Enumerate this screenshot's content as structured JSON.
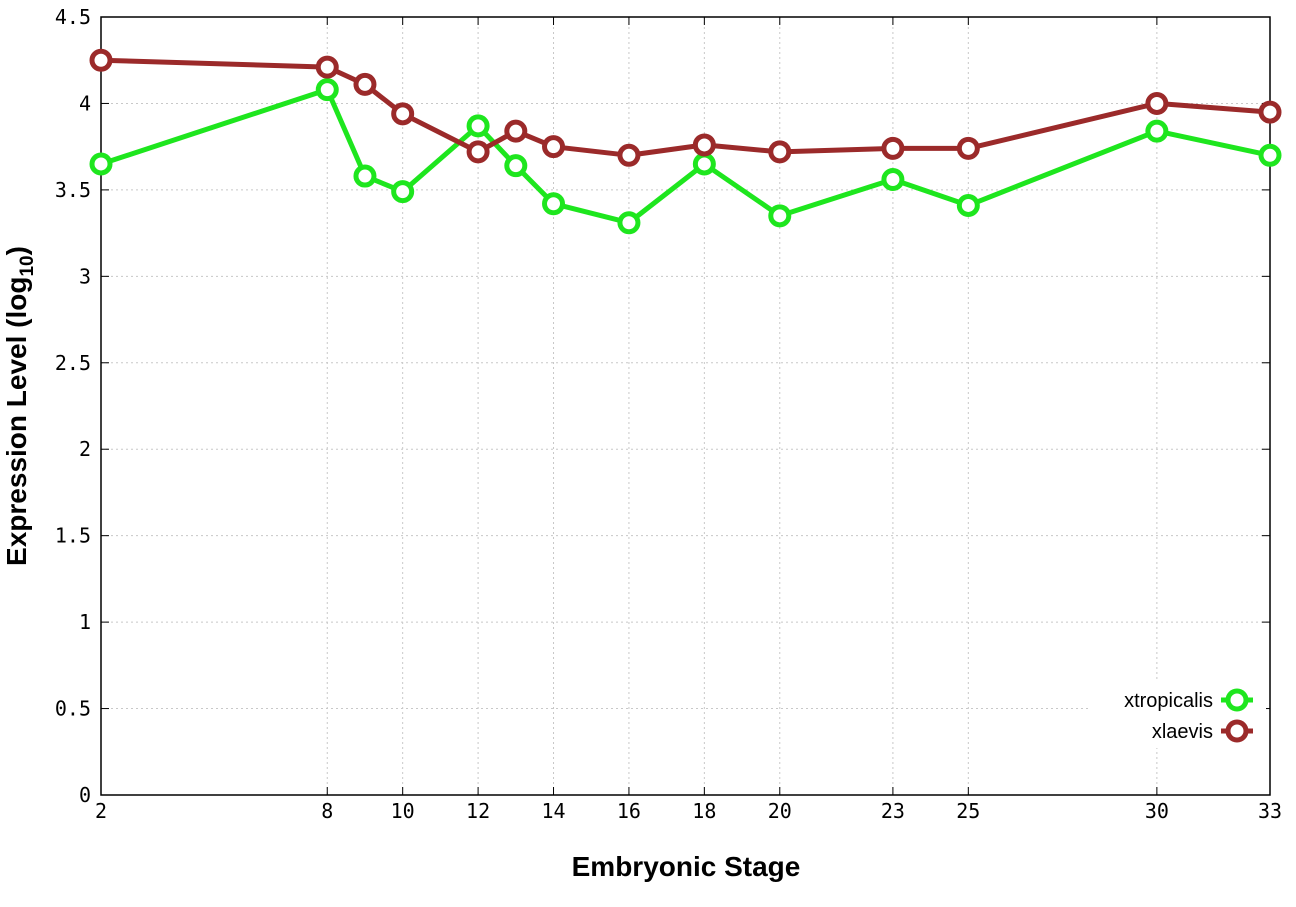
{
  "chart_data": {
    "type": "line",
    "xlabel": "Embryonic Stage",
    "ylabel": "Expression Level (log",
    "ylabel_sub": "10",
    "ylabel_close": ")",
    "x_categories": [
      "2",
      "8",
      "9",
      "10",
      "12",
      "13",
      "14",
      "16",
      "18",
      "20",
      "23",
      "25",
      "30",
      "33"
    ],
    "x_tick_labels": [
      "2",
      "8",
      "10",
      "12",
      "14",
      "16",
      "18",
      "20",
      "23",
      "25",
      "30",
      "33"
    ],
    "y_ticks": [
      "0",
      "0.5",
      "1",
      "1.5",
      "2",
      "2.5",
      "3",
      "3.5",
      "4",
      "4.5"
    ],
    "ylim": [
      0,
      4.5
    ],
    "grid": true,
    "legend_position": "bottom-right",
    "series": [
      {
        "name": "xtropicalis",
        "color": "#1ee61e",
        "values": [
          3.65,
          4.08,
          3.58,
          3.49,
          3.87,
          3.64,
          3.42,
          3.31,
          3.65,
          3.35,
          3.56,
          3.41,
          3.84,
          3.7
        ]
      },
      {
        "name": "xlaevis",
        "color": "#9b2a2a",
        "values": [
          4.25,
          4.21,
          4.11,
          3.94,
          3.72,
          3.84,
          3.75,
          3.7,
          3.76,
          3.72,
          3.74,
          3.74,
          4.0,
          3.95
        ]
      }
    ]
  }
}
